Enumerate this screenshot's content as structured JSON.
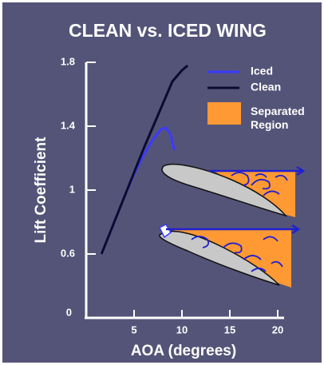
{
  "chart_data": {
    "type": "line",
    "title": "CLEAN vs. ICED WING",
    "x_label": "AOA (degrees)",
    "y_label": "Lift Coefficient",
    "origin_label": "0",
    "xlim": [
      0,
      20
    ],
    "xticks": [
      5,
      10,
      15,
      20
    ],
    "ylim": [
      0.2,
      1.8
    ],
    "yticks": [
      0.6,
      1.0,
      1.4,
      1.8
    ],
    "series": [
      {
        "name": "Iced",
        "color": "#3a3aff",
        "x": [
          1.6,
          3,
          4,
          5,
          6,
          7,
          7.8,
          8.3,
          8.8,
          9.2
        ],
        "values": [
          0.6,
          0.81,
          0.96,
          1.1,
          1.22,
          1.32,
          1.38,
          1.39,
          1.35,
          1.25
        ]
      },
      {
        "name": "Clean",
        "color": "#0b0b30",
        "x": [
          1.6,
          3,
          4,
          5,
          6,
          7,
          8,
          9,
          10,
          10.6
        ],
        "values": [
          0.6,
          0.81,
          0.96,
          1.11,
          1.26,
          1.4,
          1.54,
          1.68,
          1.75,
          1.78
        ]
      }
    ],
    "region_legend": {
      "label": "Separated Region",
      "color": "#ff9933"
    }
  }
}
